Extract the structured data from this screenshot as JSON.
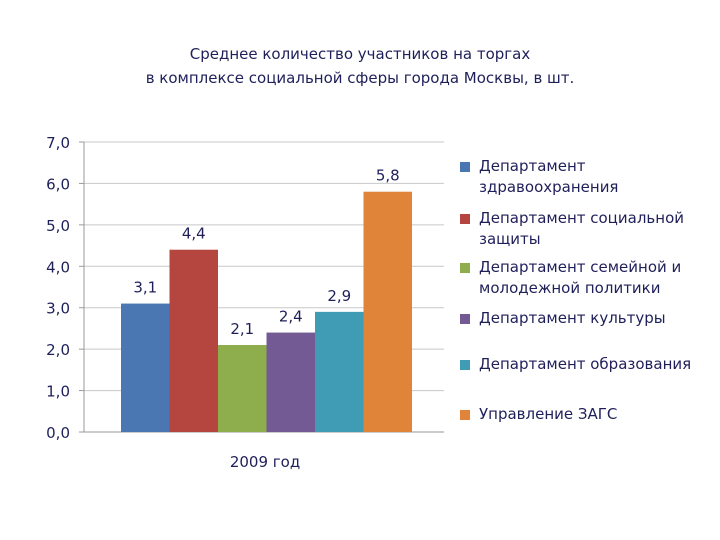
{
  "chart_data": {
    "type": "bar",
    "title_line1": "Среднее количество участников на торгах",
    "title_line2": "в комплексе социальной сферы города Москвы, в шт.",
    "categories": [
      "2009 год"
    ],
    "series": [
      {
        "name": "Департамент здравоохранения",
        "value": 3.1,
        "label": "3,1",
        "color": "#4a76b2"
      },
      {
        "name": "Департамент социальной защиты",
        "value": 4.4,
        "label": "4,4",
        "color": "#b5453f"
      },
      {
        "name": "Департамент семейной и молодежной политики",
        "value": 2.1,
        "label": "2,1",
        "color": "#8ead4d"
      },
      {
        "name": "Департамент культуры",
        "value": 2.4,
        "label": "2,4",
        "color": "#735a94"
      },
      {
        "name": "Департамент образования",
        "value": 2.9,
        "label": "2,9",
        "color": "#3f9cb4"
      },
      {
        "name": "Управление ЗАГС",
        "value": 5.8,
        "label": "5,8",
        "color": "#e0843a"
      }
    ],
    "y_ticks": [
      "0,0",
      "1,0",
      "2,0",
      "3,0",
      "4,0",
      "5,0",
      "6,0",
      "7,0"
    ],
    "ylim": [
      0,
      7
    ],
    "grid": true,
    "legend_position": "right"
  }
}
